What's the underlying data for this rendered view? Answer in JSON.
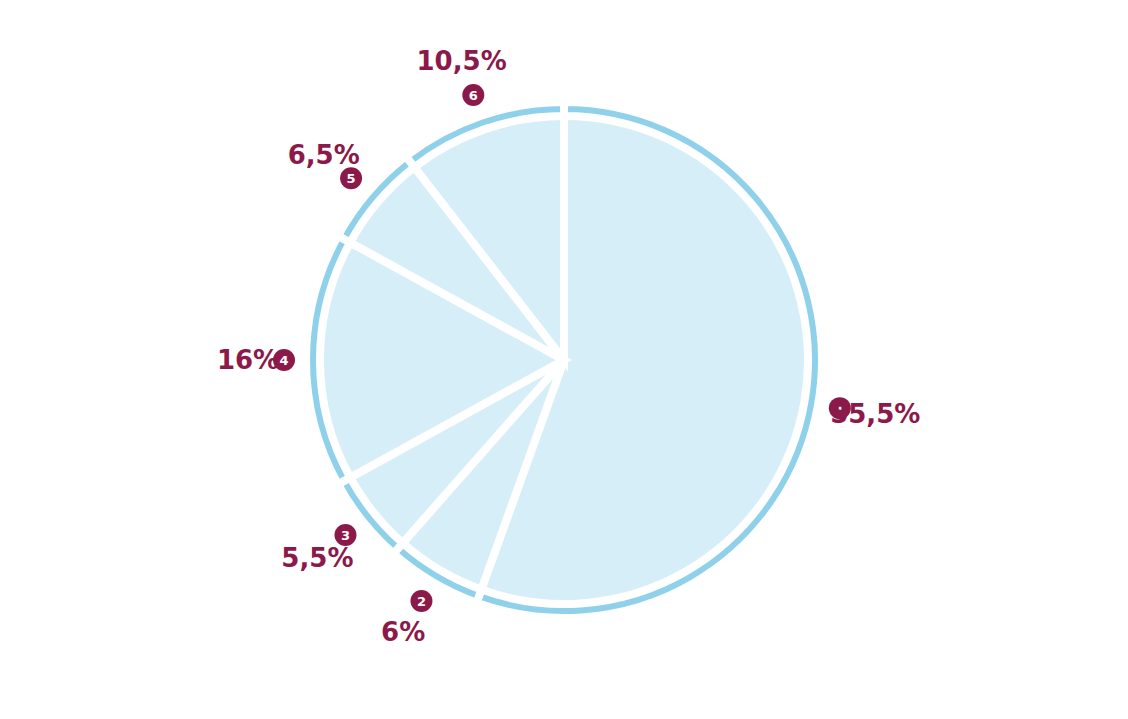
{
  "chart_data": {
    "type": "pie",
    "categories": [
      "1",
      "2",
      "3",
      "4",
      "5",
      "6"
    ],
    "values": [
      55.5,
      6,
      5.5,
      16,
      6.5,
      10.5
    ],
    "value_labels": [
      "55,5%",
      "6%",
      "5,5%",
      "16%",
      "6,5%",
      "10,5%"
    ],
    "color": "#d6eef8",
    "data_labels": true
  }
}
